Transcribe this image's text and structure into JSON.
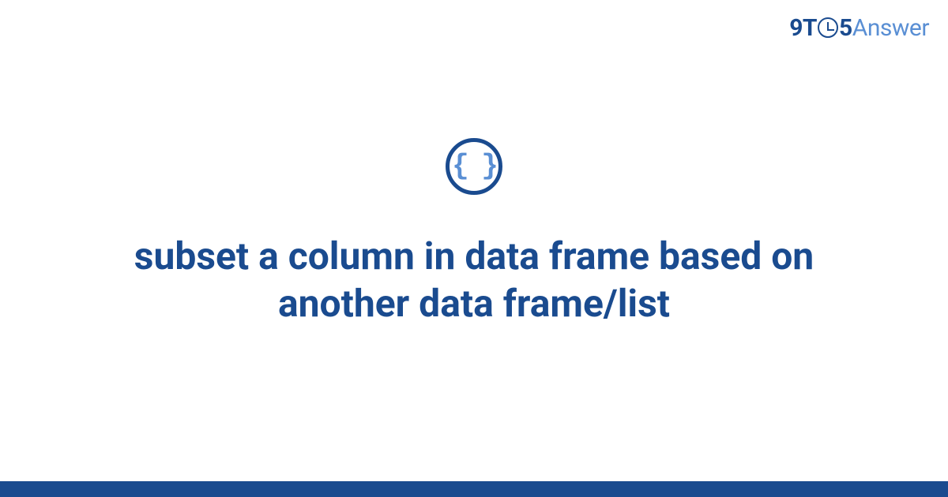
{
  "logo": {
    "part1": "9T",
    "part2": "5",
    "part3": "Answer"
  },
  "icon": {
    "braces": "{ }",
    "circle_border_color": "#1a4b8f",
    "braces_color": "#5a8fd4"
  },
  "question": {
    "title": "subset a column in data frame based on another data frame/list"
  },
  "colors": {
    "primary_dark": "#1a4b8f",
    "primary_light": "#5a8fd4",
    "background": "#ffffff"
  },
  "typography": {
    "title_fontsize": 48,
    "title_fontweight": 700,
    "logo_fontsize": 30
  },
  "layout": {
    "bottom_bar_height": 20,
    "icon_diameter": 72
  }
}
